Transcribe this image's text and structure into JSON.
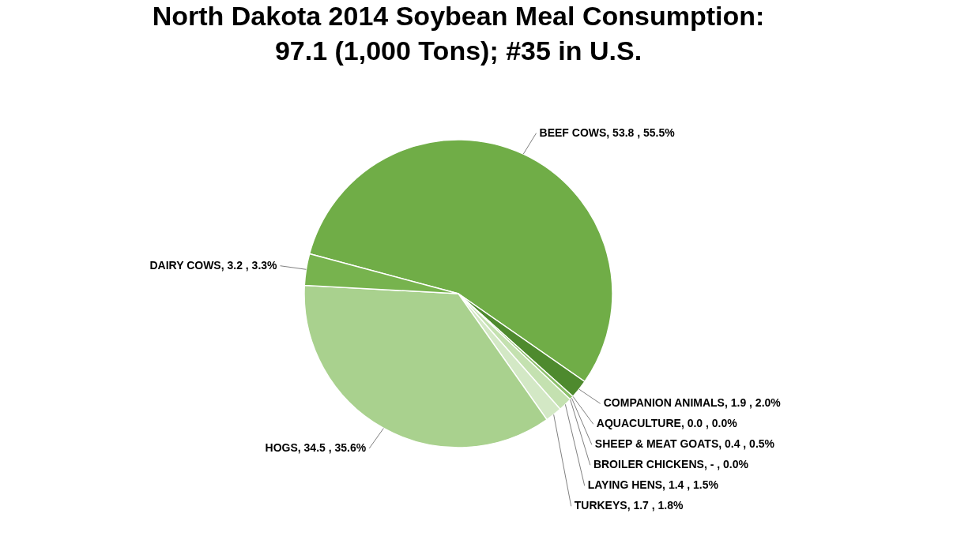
{
  "chart_data": {
    "type": "pie",
    "title": "North Dakota 2014 Soybean Meal Consumption:\n97.1 (1,000 Tons); #35 in U.S.",
    "categories": [
      "BEEF COWS",
      "COMPANION ANIMALS",
      "AQUACULTURE",
      "SHEEP & MEAT GOATS",
      "BROILER CHICKENS",
      "LAYING HENS",
      "TURKEYS",
      "HOGS",
      "DAIRY COWS"
    ],
    "values": [
      53.8,
      1.9,
      0.0,
      0.4,
      0,
      1.4,
      1.7,
      34.5,
      3.2
    ],
    "value_labels": [
      ", 53.8 , 55.5%",
      ", 1.9 , 2.0%",
      ", 0.0 , 0.0%",
      ", 0.4 , 0.5%",
      ", - , 0.0%",
      ", 1.4 , 1.5%",
      ", 1.7 , 1.8%",
      ", 34.5 , 35.6%",
      ", 3.2 , 3.3%"
    ],
    "colors": [
      "#70ad47",
      "#4e8a2e",
      "#5f9e3c",
      "#8cc06a",
      "#b0d696",
      "#c4e1b0",
      "#d3e8c5",
      "#a9d18e",
      "#77b34e"
    ],
    "legend": false
  }
}
